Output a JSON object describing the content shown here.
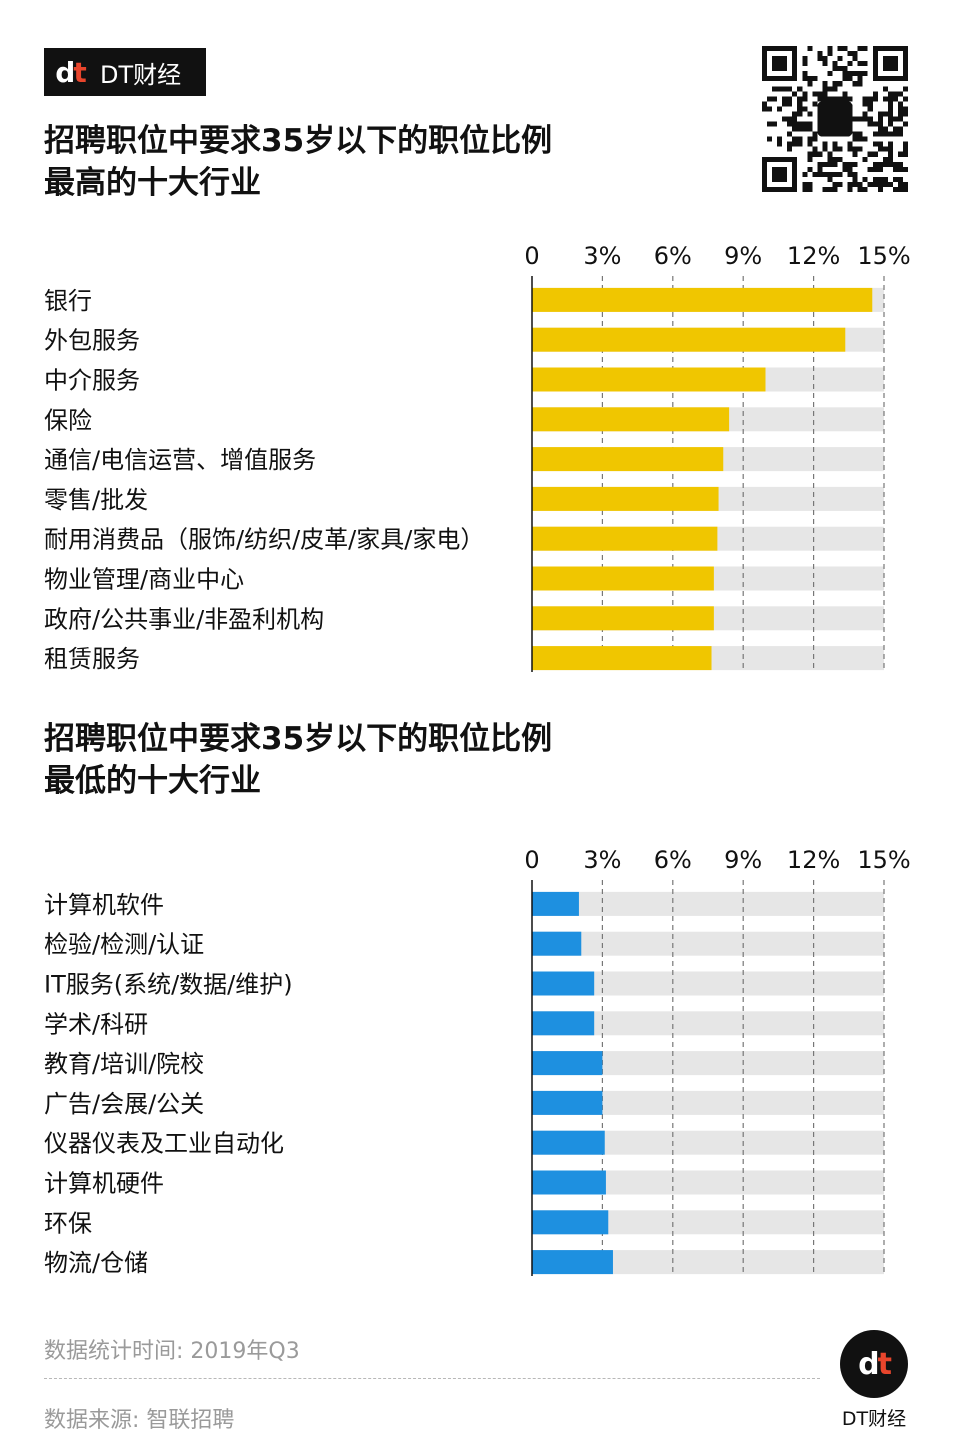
{
  "brand": {
    "mark": "dt",
    "name": "DT财经"
  },
  "footer": {
    "time_label": "数据统计时间: 2019年Q3",
    "source_label": "数据来源: 智联招聘",
    "brand_name": "DT财经"
  },
  "colors": {
    "top_bar": "#f0c600",
    "bottom_bar": "#1e90e0",
    "track": "#e6e6e6",
    "gridline": "#777777"
  },
  "chart_data": [
    {
      "type": "bar",
      "orientation": "horizontal",
      "title_lines": [
        "招聘职位中要求35岁以下的职位比例",
        "最高的十大行业"
      ],
      "tick_labels": [
        "0",
        "3%",
        "6%",
        "9%",
        "12%",
        "15%"
      ],
      "ticks": [
        0,
        3,
        6,
        9,
        12,
        15
      ],
      "xlim": [
        0,
        15
      ],
      "grid": true,
      "categories": [
        "银行",
        "外包服务",
        "中介服务",
        "保险",
        "通信/电信运营、增值服务",
        "零售/批发",
        "耐用消费品（服饰/纺织/皮革/家具/家电）",
        "物业管理/商业中心",
        "政府/公共事业/非盈利机构",
        "租赁服务"
      ],
      "values": [
        14.5,
        13.35,
        9.95,
        8.4,
        8.15,
        7.95,
        7.9,
        7.75,
        7.75,
        7.65
      ]
    },
    {
      "type": "bar",
      "orientation": "horizontal",
      "title_lines": [
        "招聘职位中要求35岁以下的职位比例",
        "最低的十大行业"
      ],
      "tick_labels": [
        "0",
        "3%",
        "6%",
        "9%",
        "12%",
        "15%"
      ],
      "ticks": [
        0,
        3,
        6,
        9,
        12,
        15
      ],
      "xlim": [
        0,
        15
      ],
      "grid": true,
      "categories": [
        "计算机软件",
        "检验/检测/认证",
        "IT服务(系统/数据/维护)",
        "学术/科研",
        "教育/培训/院校",
        "广告/会展/公关",
        "仪器仪表及工业自动化",
        "计算机硬件",
        "环保",
        "物流/仓储"
      ],
      "values": [
        2.0,
        2.1,
        2.65,
        2.65,
        3.0,
        3.0,
        3.1,
        3.15,
        3.25,
        3.45
      ]
    }
  ]
}
